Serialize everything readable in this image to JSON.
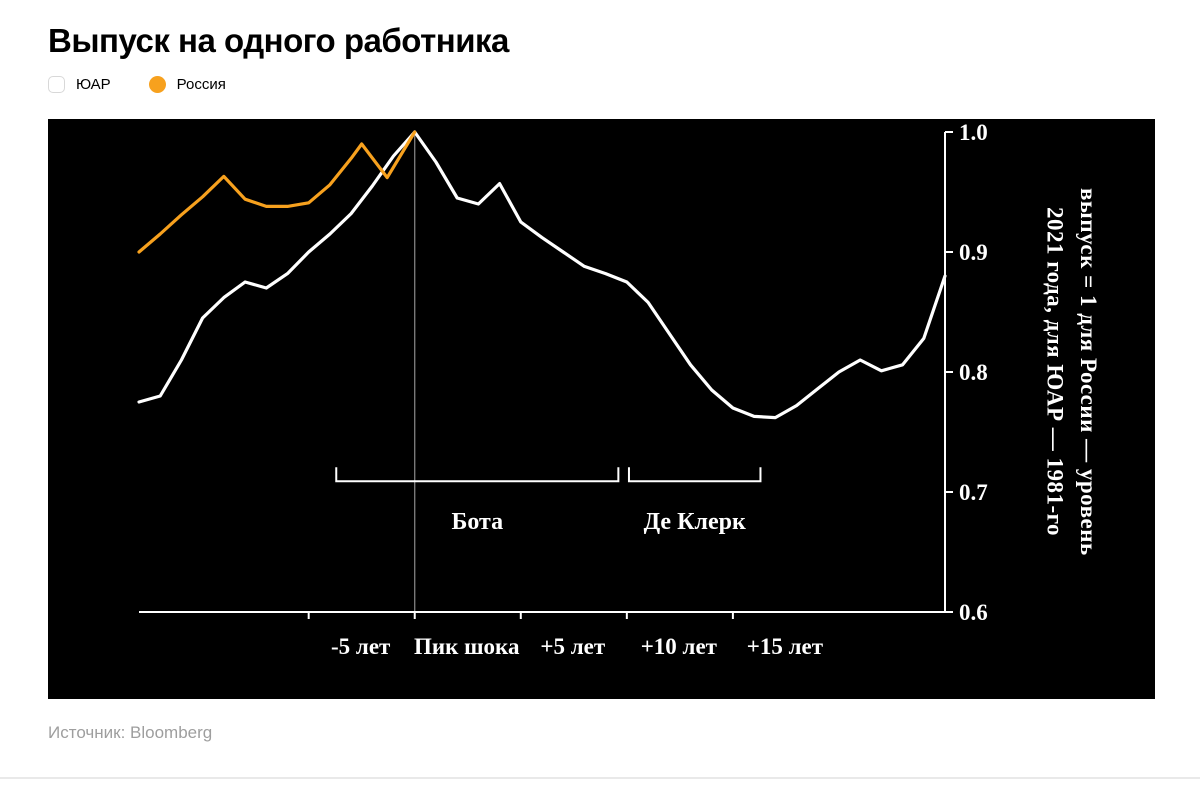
{
  "page": {
    "title": "Выпуск на одного работника",
    "source_label": "Источник:",
    "source_value": "Bloomberg"
  },
  "legend": {
    "items": [
      {
        "label": "ЮАР",
        "color": "#ffffff",
        "swatch": "square-outline"
      },
      {
        "label": "Россия",
        "color": "#f7a11e",
        "swatch": "circle"
      }
    ]
  },
  "chart_data": {
    "type": "line",
    "background": "#000000",
    "axis_color": "#ffffff",
    "xlim": [
      -13,
      25
    ],
    "ylim": [
      0.6,
      1.0
    ],
    "y_ticks": [
      1.0,
      0.9,
      0.8,
      0.7,
      0.6
    ],
    "x_ticks": [
      -5,
      0,
      5,
      10,
      15
    ],
    "x_tick_labels": [
      "-5 лет",
      "Пик шока",
      "+5 лет",
      "+10 лет",
      "+15 лет"
    ],
    "peak_marker_x": 0,
    "y_axis_label_lines": [
      "выпуск = 1 для России — уровень",
      "2021 года, для ЮАР — 1981-го"
    ],
    "series": [
      {
        "id": "zar",
        "name": "ЮАР",
        "color": "#ffffff",
        "x": [
          -13,
          -12,
          -11,
          -10,
          -9,
          -8,
          -7,
          -6,
          -5,
          -4,
          -3,
          -2,
          -1,
          0,
          1,
          2,
          3,
          4,
          5,
          6,
          7,
          8,
          9,
          10,
          11,
          12,
          13,
          14,
          15,
          16,
          17,
          18,
          19,
          20,
          21,
          22,
          23,
          24,
          25
        ],
        "y": [
          0.775,
          0.78,
          0.81,
          0.845,
          0.862,
          0.875,
          0.87,
          0.882,
          0.9,
          0.915,
          0.932,
          0.955,
          0.98,
          1.0,
          0.975,
          0.945,
          0.94,
          0.957,
          0.925,
          0.912,
          0.9,
          0.888,
          0.882,
          0.875,
          0.858,
          0.832,
          0.806,
          0.785,
          0.77,
          0.763,
          0.762,
          0.772,
          0.786,
          0.8,
          0.81,
          0.801,
          0.806,
          0.828,
          0.88
        ]
      },
      {
        "id": "russia",
        "name": "Россия",
        "color": "#f7a11e",
        "x": [
          -13,
          -12,
          -11,
          -10,
          -9,
          -8,
          -7,
          -6,
          -5,
          -4,
          -3,
          -2.5,
          -1.3,
          0
        ],
        "y": [
          0.9,
          0.915,
          0.931,
          0.946,
          0.963,
          0.944,
          0.938,
          0.938,
          0.941,
          0.956,
          0.978,
          0.99,
          0.962,
          1.0
        ]
      }
    ],
    "annotations": [
      {
        "label": "Бота",
        "x_from": -3.7,
        "x_to": 9.6,
        "y": 0.709,
        "label_y": 0.676
      },
      {
        "label": "Де Клерк",
        "x_from": 10.1,
        "x_to": 16.3,
        "y": 0.709,
        "label_y": 0.676
      }
    ]
  }
}
